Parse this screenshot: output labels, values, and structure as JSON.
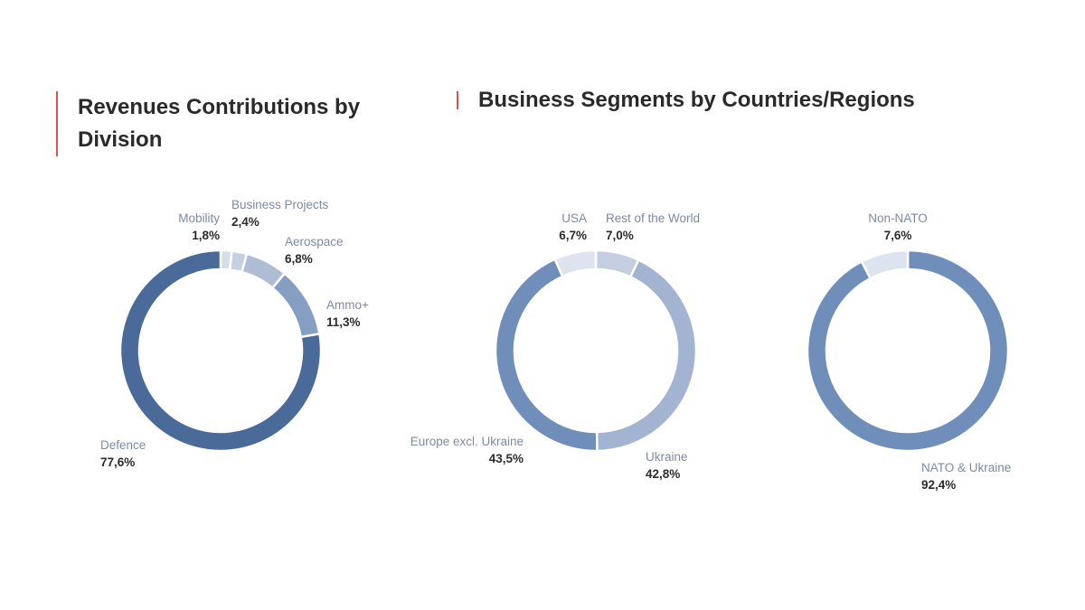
{
  "titles": {
    "left": "Revenues Contributions by Division",
    "right": "Business Segments by Countries/Regions"
  },
  "chart_data": [
    {
      "type": "pie",
      "title": "Revenues Contributions by Division",
      "slices": [
        {
          "name": "Mobility",
          "value": 1.8,
          "label": "1,8%",
          "color": "#d6dde9"
        },
        {
          "name": "Business Projects",
          "value": 2.4,
          "label": "2,4%",
          "color": "#c6d0e0"
        },
        {
          "name": "Aerospace",
          "value": 6.8,
          "label": "6,8%",
          "color": "#aebdd4"
        },
        {
          "name": "Ammo+",
          "value": 11.3,
          "label": "11,3%",
          "color": "#869ec2"
        },
        {
          "name": "Defence",
          "value": 77.6,
          "label": "77,6%",
          "color": "#4a6a9a"
        }
      ]
    },
    {
      "type": "pie",
      "title": "Business Segments by Countries/Regions",
      "slices": [
        {
          "name": "Rest of the World",
          "value": 7.0,
          "label": "7,0%",
          "color": "#c3cfe1"
        },
        {
          "name": "Ukraine",
          "value": 42.8,
          "label": "42,8%",
          "color": "#a2b4d1"
        },
        {
          "name": "Europe excl. Ukraine",
          "value": 43.5,
          "label": "43,5%",
          "color": "#6f8eba"
        },
        {
          "name": "USA",
          "value": 6.7,
          "label": "6,7%",
          "color": "#dde4ef"
        }
      ]
    },
    {
      "type": "pie",
      "title": "Business Segments by Countries/Regions",
      "slices": [
        {
          "name": "NATO & Ukraine",
          "value": 92.4,
          "label": "92,4%",
          "color": "#6f8eba"
        },
        {
          "name": "Non-NATO",
          "value": 7.6,
          "label": "7,6%",
          "color": "#dde4ef"
        }
      ]
    }
  ]
}
